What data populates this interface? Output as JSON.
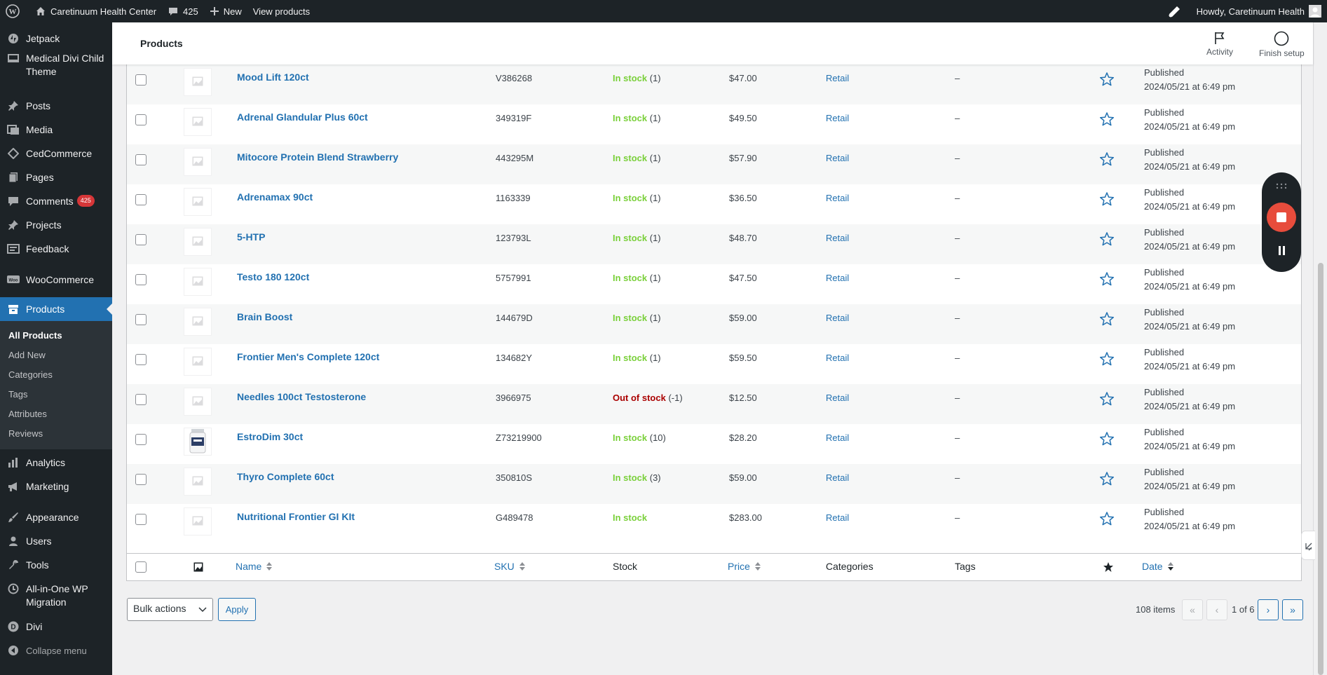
{
  "adminbar": {
    "site_name": "Caretinuum Health Center",
    "comments_count": "425",
    "new_label": "New",
    "view_label": "View products",
    "howdy": "Howdy, Caretinuum Health"
  },
  "sidebar": {
    "items_top": [
      {
        "label": "Jetpack",
        "icon": "jetpack-icon"
      },
      {
        "label": "Medical Divi Child Theme",
        "icon": "brush-icon"
      },
      {
        "label": "Posts",
        "icon": "pin-icon"
      },
      {
        "label": "Media",
        "icon": "media-icon"
      },
      {
        "label": "CedCommerce",
        "icon": "diamond-icon"
      },
      {
        "label": "Pages",
        "icon": "page-icon"
      },
      {
        "label": "Comments",
        "icon": "comment-icon",
        "badge": "425"
      },
      {
        "label": "Projects",
        "icon": "pin-icon"
      },
      {
        "label": "Feedback",
        "icon": "feedback-icon"
      },
      {
        "label": "WooCommerce",
        "icon": "woo-icon"
      },
      {
        "label": "Products",
        "icon": "archive-icon"
      }
    ],
    "submenu": [
      "All Products",
      "Add New",
      "Categories",
      "Tags",
      "Attributes",
      "Reviews"
    ],
    "items_bottom": [
      {
        "label": "Analytics",
        "icon": "chart-icon"
      },
      {
        "label": "Marketing",
        "icon": "megaphone-icon"
      },
      {
        "label": "Appearance",
        "icon": "brush-icon"
      },
      {
        "label": "Users",
        "icon": "user-icon"
      },
      {
        "label": "Tools",
        "icon": "wrench-icon"
      },
      {
        "label": "All-in-One WP Migration",
        "icon": "migration-icon"
      },
      {
        "label": "Divi",
        "icon": "divi-icon"
      },
      {
        "label": "Collapse menu",
        "icon": "collapse-icon"
      }
    ]
  },
  "header": {
    "title": "Products",
    "activity": "Activity",
    "finish_setup": "Finish setup"
  },
  "products": [
    {
      "name": "Mood Lift 120ct",
      "sku": "V386268",
      "stock": "In stock",
      "qty": "(1)",
      "price": "$47.00",
      "category": "Retail",
      "tags": "–",
      "status": "Published",
      "date": "2024/05/21 at 6:49 pm"
    },
    {
      "name": "Adrenal Glandular Plus 60ct",
      "sku": "349319F",
      "stock": "In stock",
      "qty": "(1)",
      "price": "$49.50",
      "category": "Retail",
      "tags": "–",
      "status": "Published",
      "date": "2024/05/21 at 6:49 pm"
    },
    {
      "name": "Mitocore Protein Blend Strawberry",
      "sku": "443295M",
      "stock": "In stock",
      "qty": "(1)",
      "price": "$57.90",
      "category": "Retail",
      "tags": "–",
      "status": "Published",
      "date": "2024/05/21 at 6:49 pm"
    },
    {
      "name": "Adrenamax 90ct",
      "sku": "1163339",
      "stock": "In stock",
      "qty": "(1)",
      "price": "$36.50",
      "category": "Retail",
      "tags": "–",
      "status": "Published",
      "date": "2024/05/21 at 6:49 pm"
    },
    {
      "name": "5-HTP",
      "sku": "123793L",
      "stock": "In stock",
      "qty": "(1)",
      "price": "$48.70",
      "category": "Retail",
      "tags": "–",
      "status": "Published",
      "date": "2024/05/21 at 6:49 pm"
    },
    {
      "name": "Testo 180 120ct",
      "sku": "5757991",
      "stock": "In stock",
      "qty": "(1)",
      "price": "$47.50",
      "category": "Retail",
      "tags": "–",
      "status": "Published",
      "date": "2024/05/21 at 6:49 pm"
    },
    {
      "name": "Brain Boost",
      "sku": "144679D",
      "stock": "In stock",
      "qty": "(1)",
      "price": "$59.00",
      "category": "Retail",
      "tags": "–",
      "status": "Published",
      "date": "2024/05/21 at 6:49 pm"
    },
    {
      "name": "Frontier Men's Complete 120ct",
      "sku": "134682Y",
      "stock": "In stock",
      "qty": "(1)",
      "price": "$59.50",
      "category": "Retail",
      "tags": "–",
      "status": "Published",
      "date": "2024/05/21 at 6:49 pm"
    },
    {
      "name": "Needles 100ct Testosterone",
      "sku": "3966975",
      "stock": "Out of stock",
      "qty": "(-1)",
      "price": "$12.50",
      "category": "Retail",
      "tags": "–",
      "status": "Published",
      "date": "2024/05/21 at 6:49 pm"
    },
    {
      "name": "EstroDim 30ct",
      "sku": "Z73219900",
      "stock": "In stock",
      "qty": "(10)",
      "price": "$28.20",
      "category": "Retail",
      "tags": "–",
      "status": "Published",
      "date": "2024/05/21 at 6:49 pm",
      "has_image": true
    },
    {
      "name": "Thyro Complete 60ct",
      "sku": "350810S",
      "stock": "In stock",
      "qty": "(3)",
      "price": "$59.00",
      "category": "Retail",
      "tags": "–",
      "status": "Published",
      "date": "2024/05/21 at 6:49 pm"
    },
    {
      "name": "Nutritional Frontier GI KIt",
      "sku": "G489478",
      "stock": "In stock",
      "qty": "",
      "price": "$283.00",
      "category": "Retail",
      "tags": "–",
      "status": "Published",
      "date": "2024/05/21 at 6:49 pm"
    }
  ],
  "columns": {
    "name": "Name",
    "sku": "SKU",
    "stock": "Stock",
    "price": "Price",
    "categories": "Categories",
    "tags": "Tags",
    "date": "Date"
  },
  "bulk": {
    "select_value": "Bulk actions",
    "apply": "Apply"
  },
  "pagination": {
    "items": "108 items",
    "first": "«",
    "prev": "‹",
    "current": "1 of 6",
    "next": "›",
    "last": "»"
  },
  "colors": {
    "admin_bg": "#1d2327",
    "accent": "#2271b1",
    "in_stock": "#7ad03a",
    "out_of_stock": "#aa0000",
    "record": "#e74c3c"
  }
}
